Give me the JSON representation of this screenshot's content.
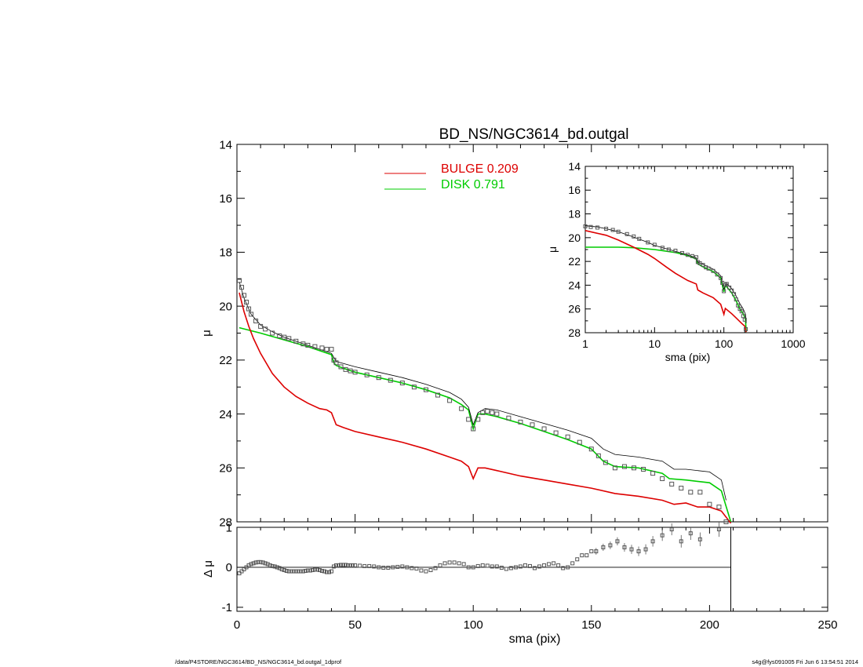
{
  "figure": {
    "title": "BD_NS/NGC3614_bd.outgal",
    "footer_left": "/data/P4STORE/NGC3614/BD_NS/NGC3614_bd.outgal_1dprof",
    "footer_right": "s4g@fys091005  Fri Jun  6 13:54:51 2014"
  },
  "colors": {
    "data": "#555555",
    "model": "#000000",
    "bulge": "#dd0000",
    "disk": "#00cc00",
    "axes": "#000000"
  },
  "chart_data": [
    {
      "id": "main",
      "type": "line",
      "title": "BD_NS/NGC3614_bd.outgal",
      "xlabel": "",
      "ylabel": "μ",
      "xlim": [
        0,
        250
      ],
      "ylim": [
        28,
        14
      ],
      "y_inverted": true,
      "x_ticks": [
        0,
        50,
        100,
        150,
        200,
        250
      ],
      "y_ticks": [
        14,
        16,
        18,
        20,
        22,
        24,
        26,
        28
      ],
      "legend": {
        "placement": "top-center",
        "entries": [
          {
            "name": "BULGE",
            "value": "0.209",
            "color": "#dd0000"
          },
          {
            "name": "DISK",
            "value": "0.791",
            "color": "#00cc00"
          }
        ]
      },
      "series": [
        {
          "name": "data",
          "style": "open-squares",
          "x": [
            1,
            2,
            3,
            4,
            5,
            6,
            8,
            10,
            12,
            15,
            18,
            20,
            22,
            25,
            28,
            30,
            33,
            36,
            38,
            40,
            41,
            42,
            44,
            46,
            48,
            50,
            55,
            60,
            65,
            70,
            75,
            80,
            85,
            90,
            95,
            98,
            100,
            102,
            104,
            106,
            108,
            110,
            115,
            120,
            125,
            130,
            135,
            140,
            145,
            150,
            153,
            156,
            160,
            164,
            168,
            172,
            176,
            180,
            184,
            188,
            192,
            196,
            200,
            204,
            207
          ],
          "y": [
            19.05,
            19.3,
            19.6,
            19.85,
            20.1,
            20.3,
            20.55,
            20.75,
            20.85,
            21.0,
            21.1,
            21.15,
            21.2,
            21.3,
            21.4,
            21.45,
            21.5,
            21.55,
            21.6,
            21.6,
            22.0,
            22.1,
            22.25,
            22.35,
            22.4,
            22.45,
            22.55,
            22.65,
            22.75,
            22.85,
            23.0,
            23.1,
            23.3,
            23.5,
            23.8,
            24.2,
            24.55,
            24.2,
            23.95,
            23.9,
            23.95,
            24.0,
            24.15,
            24.3,
            24.4,
            24.55,
            24.7,
            24.85,
            25.05,
            25.3,
            25.55,
            25.8,
            26.0,
            25.95,
            26.0,
            26.05,
            26.2,
            26.4,
            26.6,
            26.75,
            26.9,
            26.9,
            27.35,
            27.45,
            28.0
          ]
        },
        {
          "name": "model",
          "style": "thin-line",
          "x": [
            1,
            3,
            6,
            10,
            15,
            20,
            30,
            40,
            42,
            50,
            60,
            70,
            80,
            90,
            95,
            98,
            100,
            102,
            105,
            110,
            120,
            130,
            140,
            150,
            155,
            160,
            170,
            180,
            185,
            190,
            200,
            205,
            207
          ],
          "y": [
            19.1,
            19.7,
            20.3,
            20.7,
            20.95,
            21.15,
            21.45,
            21.75,
            22.05,
            22.25,
            22.45,
            22.65,
            22.9,
            23.2,
            23.45,
            23.75,
            24.4,
            23.95,
            23.8,
            23.85,
            24.1,
            24.35,
            24.6,
            24.9,
            25.3,
            25.5,
            25.6,
            25.75,
            26.05,
            26.05,
            26.15,
            26.45,
            27.2
          ]
        },
        {
          "name": "BULGE",
          "style": "line",
          "x": [
            1,
            2,
            3,
            5,
            7,
            10,
            15,
            20,
            25,
            30,
            35,
            38,
            40,
            42,
            45,
            50,
            60,
            70,
            80,
            90,
            95,
            98,
            100,
            102,
            105,
            110,
            120,
            130,
            140,
            150,
            160,
            170,
            180,
            185,
            190,
            195,
            200,
            205,
            209
          ],
          "y": [
            19.5,
            19.85,
            20.2,
            20.75,
            21.2,
            21.75,
            22.5,
            23.0,
            23.35,
            23.6,
            23.8,
            23.85,
            23.95,
            24.4,
            24.5,
            24.65,
            24.85,
            25.05,
            25.3,
            25.6,
            25.75,
            25.95,
            26.4,
            26.0,
            26.0,
            26.1,
            26.3,
            26.45,
            26.6,
            26.75,
            26.95,
            27.05,
            27.2,
            27.35,
            27.3,
            27.45,
            27.45,
            27.6,
            28.05
          ]
        },
        {
          "name": "DISK",
          "style": "line",
          "x": [
            1,
            10,
            20,
            30,
            40,
            41,
            42,
            45,
            50,
            60,
            70,
            80,
            90,
            95,
            98,
            100,
            102,
            105,
            110,
            120,
            130,
            140,
            150,
            155,
            160,
            170,
            180,
            183,
            190,
            200,
            205,
            209
          ],
          "y": [
            20.8,
            21.0,
            21.25,
            21.5,
            21.8,
            22.1,
            22.2,
            22.3,
            22.45,
            22.65,
            22.85,
            23.1,
            23.4,
            23.65,
            23.85,
            24.55,
            24.0,
            24.0,
            24.1,
            24.35,
            24.65,
            24.95,
            25.3,
            25.75,
            25.95,
            26.0,
            26.2,
            26.4,
            26.45,
            26.55,
            26.85,
            28.0
          ]
        }
      ]
    },
    {
      "id": "residuals",
      "type": "scatter",
      "xlabel": "sma (pix)",
      "ylabel": "Δ μ",
      "xlim": [
        0,
        250
      ],
      "ylim": [
        -1.1,
        1.0
      ],
      "x_ticks": [
        0,
        50,
        100,
        150,
        200,
        250
      ],
      "y_ticks": [
        1,
        0,
        -1
      ],
      "reference_line": 0,
      "cutoff_x": 209,
      "series": [
        {
          "name": "residual",
          "style": "open-squares-with-errorbars",
          "x": [
            1,
            2,
            3,
            4,
            5,
            6,
            7,
            8,
            9,
            10,
            11,
            12,
            13,
            14,
            15,
            16,
            17,
            18,
            19,
            20,
            21,
            22,
            23,
            24,
            25,
            26,
            27,
            28,
            29,
            30,
            31,
            32,
            33,
            34,
            35,
            36,
            37,
            38,
            39,
            40,
            41,
            42,
            43,
            44,
            45,
            46,
            47,
            48,
            49,
            50,
            52,
            54,
            56,
            58,
            60,
            62,
            64,
            66,
            68,
            70,
            72,
            74,
            76,
            78,
            80,
            82,
            84,
            86,
            88,
            90,
            92,
            94,
            96,
            98,
            100,
            102,
            104,
            106,
            108,
            110,
            112,
            114,
            116,
            118,
            120,
            122,
            124,
            126,
            128,
            130,
            132,
            134,
            136,
            138,
            140,
            142,
            144,
            146,
            148,
            150,
            152,
            155,
            158,
            161,
            164,
            167,
            170,
            173,
            176,
            180,
            184,
            188,
            192,
            196,
            204
          ],
          "y": [
            -0.15,
            -0.1,
            -0.05,
            0.0,
            0.05,
            0.08,
            0.1,
            0.12,
            0.13,
            0.13,
            0.12,
            0.1,
            0.08,
            0.05,
            0.03,
            0.02,
            0.0,
            -0.02,
            -0.05,
            -0.07,
            -0.09,
            -0.1,
            -0.1,
            -0.1,
            -0.1,
            -0.1,
            -0.1,
            -0.1,
            -0.09,
            -0.08,
            -0.08,
            -0.07,
            -0.06,
            -0.06,
            -0.07,
            -0.09,
            -0.1,
            -0.12,
            -0.12,
            -0.1,
            0.02,
            0.05,
            0.05,
            0.06,
            0.06,
            0.06,
            0.05,
            0.05,
            0.05,
            0.05,
            0.04,
            0.03,
            0.03,
            0.02,
            0.0,
            -0.01,
            -0.01,
            0.0,
            0.01,
            0.02,
            0.0,
            -0.02,
            -0.03,
            -0.08,
            -0.1,
            -0.07,
            -0.02,
            0.05,
            0.1,
            0.12,
            0.12,
            0.1,
            0.08,
            0.0,
            0.0,
            0.03,
            0.05,
            0.04,
            0.02,
            0.02,
            -0.01,
            -0.04,
            -0.02,
            0.0,
            0.02,
            0.05,
            0.03,
            -0.02,
            0.02,
            0.05,
            0.08,
            0.1,
            0.05,
            -0.02,
            0.0,
            0.1,
            0.2,
            0.3,
            0.3,
            0.4,
            0.4,
            0.5,
            0.55,
            0.65,
            0.5,
            0.45,
            0.4,
            0.45,
            0.65,
            0.8,
            0.95,
            0.65,
            0.85,
            0.7,
            0.95
          ]
        }
      ]
    },
    {
      "id": "inset",
      "type": "line",
      "xlabel": "sma (pix)",
      "ylabel": "μ",
      "x_scale": "log",
      "xlim": [
        1,
        1000
      ],
      "ylim": [
        28,
        14
      ],
      "y_inverted": true,
      "x_ticks": [
        1,
        10,
        100,
        1000
      ],
      "y_ticks": [
        14,
        16,
        18,
        20,
        22,
        24,
        26,
        28
      ],
      "placement": "top-right",
      "series": [
        {
          "name": "data",
          "style": "open-squares",
          "x": [
            1,
            1.2,
            1.5,
            2,
            2.5,
            3,
            4,
            5,
            6,
            8,
            10,
            13,
            16,
            20,
            25,
            30,
            35,
            40,
            42,
            45,
            50,
            55,
            60,
            70,
            80,
            90,
            95,
            100,
            105,
            110,
            120,
            130,
            140,
            150,
            160,
            170,
            180,
            190,
            200,
            207
          ],
          "y": [
            19.05,
            19.1,
            19.15,
            19.25,
            19.35,
            19.5,
            19.7,
            19.9,
            20.1,
            20.4,
            20.6,
            20.85,
            21.0,
            21.1,
            21.3,
            21.45,
            21.55,
            21.65,
            22.05,
            22.15,
            22.3,
            22.5,
            22.6,
            22.8,
            23.1,
            23.4,
            23.8,
            24.5,
            23.95,
            23.9,
            24.2,
            24.45,
            24.75,
            25.2,
            25.7,
            26.0,
            26.2,
            26.6,
            26.9,
            27.7
          ]
        },
        {
          "name": "model",
          "style": "thin-line",
          "x": [
            1,
            1.5,
            2,
            3,
            5,
            8,
            10,
            20,
            30,
            40,
            42,
            50,
            70,
            90,
            100,
            110,
            130,
            150,
            170,
            190,
            205,
            210
          ],
          "y": [
            19.0,
            19.1,
            19.25,
            19.5,
            19.95,
            20.4,
            20.65,
            21.15,
            21.45,
            21.7,
            22.05,
            22.25,
            22.65,
            23.2,
            24.35,
            23.85,
            24.3,
            24.9,
            25.55,
            26.0,
            26.45,
            27.2
          ]
        },
        {
          "name": "BULGE",
          "style": "line",
          "x": [
            1,
            2,
            3,
            5,
            8,
            10,
            15,
            20,
            30,
            40,
            42,
            50,
            70,
            90,
            100,
            105,
            130,
            150,
            180,
            200,
            210
          ],
          "y": [
            19.4,
            19.8,
            20.2,
            20.8,
            21.4,
            21.75,
            22.5,
            23.0,
            23.6,
            23.9,
            24.4,
            24.65,
            25.05,
            25.6,
            26.45,
            25.95,
            26.4,
            26.75,
            27.2,
            27.45,
            27.95
          ]
        },
        {
          "name": "DISK",
          "style": "line",
          "x": [
            1,
            3,
            5,
            10,
            20,
            30,
            40,
            42,
            50,
            70,
            90,
            100,
            105,
            130,
            150,
            170,
            190,
            205,
            210
          ],
          "y": [
            20.8,
            20.8,
            20.85,
            21.0,
            21.25,
            21.5,
            21.8,
            22.2,
            22.45,
            22.85,
            23.4,
            24.55,
            24.0,
            24.65,
            25.3,
            26.0,
            26.4,
            26.85,
            27.95
          ]
        }
      ]
    }
  ]
}
